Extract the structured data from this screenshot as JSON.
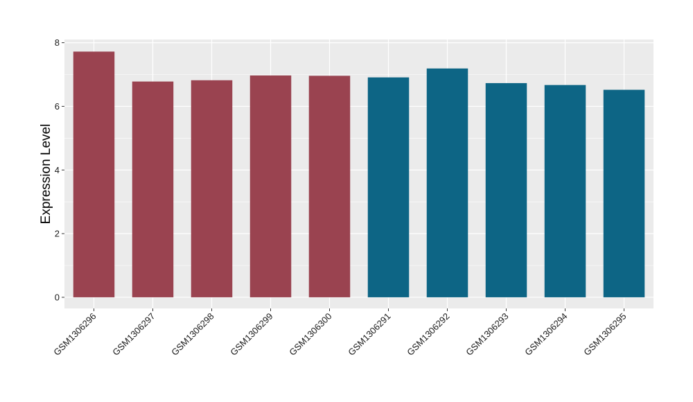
{
  "chart_data": {
    "type": "bar",
    "title": "",
    "xlabel": "",
    "ylabel": "Expression Level",
    "ylim": [
      -0.35,
      8.1
    ],
    "yticks": [
      0,
      2,
      4,
      6,
      8
    ],
    "grid": true,
    "categories": [
      "GSM1306296",
      "GSM1306297",
      "GSM1306298",
      "GSM1306299",
      "GSM1306300",
      "GSM1306291",
      "GSM1306292",
      "GSM1306293",
      "GSM1306294",
      "GSM1306295"
    ],
    "values": [
      7.72,
      6.78,
      6.82,
      6.97,
      6.96,
      6.91,
      7.19,
      6.73,
      6.67,
      6.52
    ],
    "bar_colors": [
      "#9a4350",
      "#9a4350",
      "#9a4350",
      "#9a4350",
      "#9a4350",
      "#0d6585",
      "#0d6585",
      "#0d6585",
      "#0d6585",
      "#0d6585"
    ],
    "panel_background": "#ebebeb",
    "grid_color": "#ffffff"
  }
}
